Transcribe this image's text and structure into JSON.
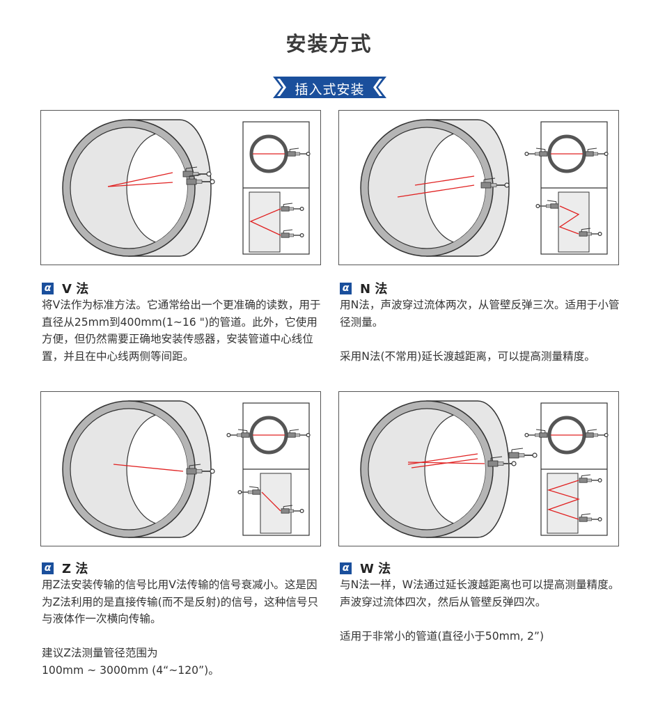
{
  "title": "安装方式",
  "banner": "插入式安装",
  "colors": {
    "accent": "#1a4f9c",
    "beam": "#e02020",
    "pipe": "#e6e6e6",
    "text": "#333333"
  },
  "methods": [
    {
      "type": "V",
      "heading": "V 法",
      "icon": "alpha-icon",
      "paragraphs": [
        "将V法作为标准方法。它通常给出一个更准确的读数，用于直径从25mm到400mm(1~16 \")的管道。此外，它使用方便，但仍然需要正确地安装传感器，安装管道中心线位置，并且在中心线两侧等间距。"
      ]
    },
    {
      "type": "N",
      "heading": "N 法",
      "icon": "alpha-icon",
      "paragraphs": [
        "用N法，声波穿过流体两次，从管壁反弹三次。适用于小管径测量。",
        "采用N法(不常用)延长渡越距离，可以提高测量精度。"
      ]
    },
    {
      "type": "Z",
      "heading": "Z 法",
      "icon": "alpha-icon",
      "paragraphs": [
        "用Z法安装传输的信号比用V法传输的信号衰减小。这是因为Z法利用的是直接传输(而不是反射)的信号，这种信号只与液体作一次横向传输。",
        "建议Z法测量管径范围为\n100mm ~ 3000mm (4“~120”)。"
      ]
    },
    {
      "type": "W",
      "heading": "W 法",
      "icon": "alpha-icon",
      "paragraphs": [
        "与N法一样，W法通过延长渡越距离也可以提高测量精度。声波穿过流体四次，然后从管壁反弹四次。",
        "适用于非常小的管道(直径小于50mm, 2”)"
      ]
    }
  ]
}
